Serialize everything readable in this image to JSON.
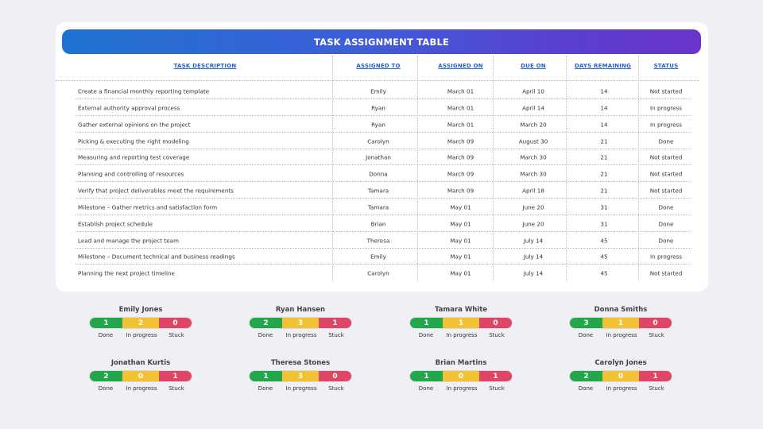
{
  "title": "TASK ASSIGNMENT TABLE",
  "columns": {
    "desc": "TASK DESCRIPTION",
    "assigned_to": "ASSIGNED TO",
    "assigned_on": "ASSIGNED ON",
    "due_on": "DUE ON",
    "days": "DAYS REMAINING",
    "status": "STATUS"
  },
  "rows": [
    {
      "desc": "Create a financial monthly reporting template",
      "to": "Emily",
      "on": "March 01",
      "due": "April 10",
      "days": "14",
      "status": "Not started"
    },
    {
      "desc": "External authority approval process",
      "to": "Ryan",
      "on": "March 01",
      "due": "April 14",
      "days": "14",
      "status": "In progress"
    },
    {
      "desc": "Gather external opinions on the project",
      "to": "Ryan",
      "on": "March 01",
      "due": "March 20",
      "days": "14",
      "status": "In progress"
    },
    {
      "desc": "Picking & executing the right modeling",
      "to": "Carolyn",
      "on": "March 09",
      "due": "August 30",
      "days": "21",
      "status": "Done"
    },
    {
      "desc": "Measuring and reporting test coverage",
      "to": "Jonathan",
      "on": "March 09",
      "due": "March 30",
      "days": "21",
      "status": "Not started"
    },
    {
      "desc": "Planning and controlling of resources",
      "to": "Donna",
      "on": "March 09",
      "due": "March 30",
      "days": "21",
      "status": "Not started"
    },
    {
      "desc": "Verify that project deliverables meet the requirements",
      "to": "Tamara",
      "on": "March 09",
      "due": "April 18",
      "days": "21",
      "status": "Not started"
    },
    {
      "desc": "Milestone – Gather metrics and satisfaction form",
      "to": "Tamara",
      "on": "May 01",
      "due": "June 20",
      "days": "31",
      "status": "Done"
    },
    {
      "desc": "Establish project schedule",
      "to": "Brian",
      "on": "May 01",
      "due": "June 20",
      "days": "31",
      "status": "Done"
    },
    {
      "desc": "Lead and manage the project team",
      "to": "Theresa",
      "on": "May 01",
      "due": "July 14",
      "days": "45",
      "status": "Done"
    },
    {
      "desc": "Milestone – Document technical and business readings",
      "to": "Emily",
      "on": "May 01",
      "due": "July 14",
      "days": "45",
      "status": "In progress"
    },
    {
      "desc": "Planning the next project timeline",
      "to": "Carolyn",
      "on": "May 01",
      "due": "July 14",
      "days": "45",
      "status": "Not started"
    }
  ],
  "legend": {
    "done": "Done",
    "in_progress": "In progress",
    "stuck": "Stuck"
  },
  "colors": {
    "done": "#22a84a",
    "in_progress": "#f2c232",
    "stuck": "#df4567",
    "header_text": "#2760c8"
  },
  "people": [
    {
      "name": "Emily Jones",
      "done": "1",
      "progress": "2",
      "stuck": "0"
    },
    {
      "name": "Ryan Hansen",
      "done": "2",
      "progress": "3",
      "stuck": "1"
    },
    {
      "name": "Tamara White",
      "done": "1",
      "progress": "1",
      "stuck": "0"
    },
    {
      "name": "Donna Smiths",
      "done": "3",
      "progress": "1",
      "stuck": "0"
    },
    {
      "name": "Jonathan Kurtis",
      "done": "2",
      "progress": "0",
      "stuck": "1"
    },
    {
      "name": "Theresa Stones",
      "done": "1",
      "progress": "3",
      "stuck": "0"
    },
    {
      "name": "Brian Martins",
      "done": "1",
      "progress": "0",
      "stuck": "1"
    },
    {
      "name": "Carolyn Jones",
      "done": "2",
      "progress": "0",
      "stuck": "1"
    }
  ]
}
